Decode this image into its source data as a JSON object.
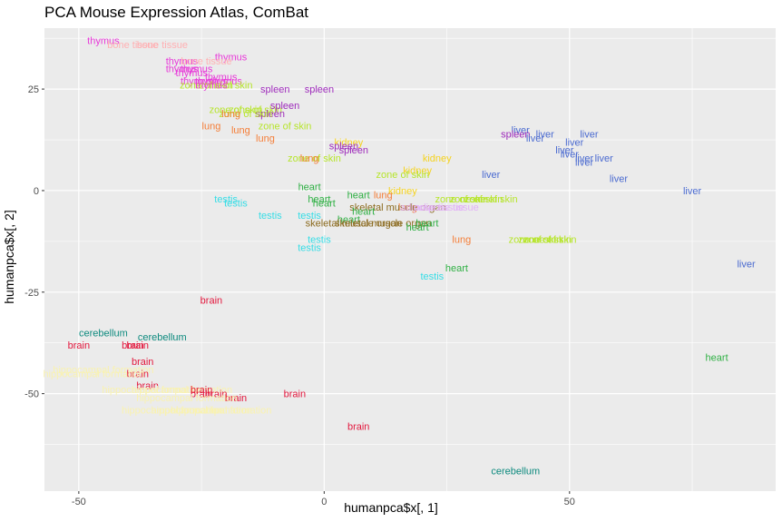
{
  "chart_data": {
    "type": "scatter",
    "title": "PCA Mouse Expression Atlas, ComBat",
    "xlabel": "humanpca$x[, 1]",
    "ylabel": "humanpca$x[, 2]",
    "xlim": [
      -57,
      92
    ],
    "ylim": [
      -74,
      40
    ],
    "x_ticks": [
      -50,
      0,
      50
    ],
    "y_ticks": [
      -50,
      -25,
      0,
      25
    ],
    "x_tick_labels": [
      "-50",
      "0",
      "50"
    ],
    "y_tick_labels": [
      "-50",
      "-25",
      "0",
      "25"
    ],
    "grid": true,
    "panel_background": "#ebebeb",
    "colors": {
      "thymus": "#e83ad9",
      "bone tissue": "#ffb0b3",
      "spleen": "#9e2bbb",
      "zone of skin": "#b6e52a",
      "lung": "#f47d37",
      "kidney": "#f5d320",
      "liver": "#4a6ad0",
      "heart": "#2fb044",
      "testis": "#36dde6",
      "skeletal muscle organ": "#8b6a1e",
      "adipose tissue": "#e2b2f6",
      "brain": "#e3173d",
      "cerebellum": "#0d8a7e",
      "hippocampal formation": "#f9f2b0"
    },
    "points": [
      {
        "label": "thymus",
        "x": -45,
        "y": 37
      },
      {
        "label": "bone tissue",
        "x": -33,
        "y": 36
      },
      {
        "label": "bone tissue",
        "x": -39,
        "y": 36
      },
      {
        "label": "thymus",
        "x": -19,
        "y": 33
      },
      {
        "label": "thymus",
        "x": -29,
        "y": 32
      },
      {
        "label": "bone tissue",
        "x": -24,
        "y": 32
      },
      {
        "label": "thymus",
        "x": -26,
        "y": 30
      },
      {
        "label": "thymus",
        "x": -29,
        "y": 30
      },
      {
        "label": "thymus",
        "x": -27,
        "y": 29
      },
      {
        "label": "thymus",
        "x": -21,
        "y": 28
      },
      {
        "label": "thymus",
        "x": -26,
        "y": 27
      },
      {
        "label": "thymus",
        "x": -23,
        "y": 27
      },
      {
        "label": "thymus",
        "x": -20,
        "y": 27
      },
      {
        "label": "zone of skin",
        "x": -24,
        "y": 26
      },
      {
        "label": "zone of skin",
        "x": -20,
        "y": 26
      },
      {
        "label": "thymus",
        "x": -23,
        "y": 26
      },
      {
        "label": "spleen",
        "x": -10,
        "y": 25
      },
      {
        "label": "spleen",
        "x": -1,
        "y": 25
      },
      {
        "label": "zone of skin",
        "x": -18,
        "y": 20
      },
      {
        "label": "zone of skin",
        "x": -14,
        "y": 20
      },
      {
        "label": "spleen",
        "x": -8,
        "y": 21
      },
      {
        "label": "spleen",
        "x": -11,
        "y": 19
      },
      {
        "label": "zone of skin",
        "x": -16,
        "y": 19
      },
      {
        "label": "lung",
        "x": -19,
        "y": 19
      },
      {
        "label": "lung",
        "x": -23,
        "y": 16
      },
      {
        "label": "lung",
        "x": -17,
        "y": 15
      },
      {
        "label": "zone of skin",
        "x": -8,
        "y": 16
      },
      {
        "label": "lung",
        "x": -12,
        "y": 13
      },
      {
        "label": "kidney",
        "x": 5,
        "y": 12
      },
      {
        "label": "spleen",
        "x": 4,
        "y": 11
      },
      {
        "label": "spleen",
        "x": 6,
        "y": 10
      },
      {
        "label": "zone of skin",
        "x": -2,
        "y": 8
      },
      {
        "label": "lung",
        "x": -3,
        "y": 8
      },
      {
        "label": "kidney",
        "x": 23,
        "y": 8
      },
      {
        "label": "liver",
        "x": 40,
        "y": 15
      },
      {
        "label": "liver",
        "x": 45,
        "y": 14
      },
      {
        "label": "spleen",
        "x": 39,
        "y": 14
      },
      {
        "label": "liver",
        "x": 43,
        "y": 13
      },
      {
        "label": "liver",
        "x": 54,
        "y": 14
      },
      {
        "label": "liver",
        "x": 51,
        "y": 12
      },
      {
        "label": "liver",
        "x": 49,
        "y": 10
      },
      {
        "label": "liver",
        "x": 50,
        "y": 9
      },
      {
        "label": "liver",
        "x": 53,
        "y": 8
      },
      {
        "label": "liver",
        "x": 53,
        "y": 7
      },
      {
        "label": "liver",
        "x": 57,
        "y": 8
      },
      {
        "label": "kidney",
        "x": 19,
        "y": 5
      },
      {
        "label": "zone of skin",
        "x": 16,
        "y": 4
      },
      {
        "label": "liver",
        "x": 34,
        "y": 4
      },
      {
        "label": "liver",
        "x": 60,
        "y": 3
      },
      {
        "label": "heart",
        "x": -3,
        "y": 1
      },
      {
        "label": "kidney",
        "x": 16,
        "y": 0
      },
      {
        "label": "liver",
        "x": 75,
        "y": 0
      },
      {
        "label": "testis",
        "x": -20,
        "y": -2
      },
      {
        "label": "testis",
        "x": -18,
        "y": -3
      },
      {
        "label": "heart",
        "x": -1,
        "y": -2
      },
      {
        "label": "heart",
        "x": 0,
        "y": -3
      },
      {
        "label": "heart",
        "x": 7,
        "y": -1
      },
      {
        "label": "lung",
        "x": 12,
        "y": -1
      },
      {
        "label": "zone of skin",
        "x": 28,
        "y": -2
      },
      {
        "label": "zone of skin",
        "x": 31,
        "y": -2
      },
      {
        "label": "zone of skin",
        "x": 34,
        "y": -2
      },
      {
        "label": "lung",
        "x": 17,
        "y": -4
      },
      {
        "label": "skeletal muscle organ",
        "x": 15,
        "y": -4
      },
      {
        "label": "adipose tissue",
        "x": 22,
        "y": -4
      },
      {
        "label": "adipose tissue",
        "x": 25,
        "y": -4
      },
      {
        "label": "heart",
        "x": 8,
        "y": -5
      },
      {
        "label": "testis",
        "x": -11,
        "y": -6
      },
      {
        "label": "testis",
        "x": -3,
        "y": -6
      },
      {
        "label": "heart",
        "x": 5,
        "y": -7
      },
      {
        "label": "skeletal muscle organ",
        "x": 6,
        "y": -8
      },
      {
        "label": "skeletal muscle organ",
        "x": 12,
        "y": -8
      },
      {
        "label": "heart",
        "x": 21,
        "y": -8
      },
      {
        "label": "heart",
        "x": 19,
        "y": -9
      },
      {
        "label": "testis",
        "x": -1,
        "y": -12
      },
      {
        "label": "testis",
        "x": -3,
        "y": -14
      },
      {
        "label": "lung",
        "x": 28,
        "y": -12
      },
      {
        "label": "zone of skin",
        "x": 43,
        "y": -12
      },
      {
        "label": "zone of skin",
        "x": 45,
        "y": -12
      },
      {
        "label": "zone of skin",
        "x": 46,
        "y": -12
      },
      {
        "label": "heart",
        "x": 27,
        "y": -19
      },
      {
        "label": "testis",
        "x": 22,
        "y": -21
      },
      {
        "label": "liver",
        "x": 86,
        "y": -18
      },
      {
        "label": "brain",
        "x": -23,
        "y": -27
      },
      {
        "label": "cerebellum",
        "x": -45,
        "y": -35
      },
      {
        "label": "cerebellum",
        "x": -33,
        "y": -36
      },
      {
        "label": "brain",
        "x": -39,
        "y": -38
      },
      {
        "label": "brain",
        "x": -38,
        "y": -38
      },
      {
        "label": "brain",
        "x": -50,
        "y": -38
      },
      {
        "label": "heart",
        "x": 80,
        "y": -41
      },
      {
        "label": "brain",
        "x": -37,
        "y": -42
      },
      {
        "label": "hippocampal formation",
        "x": -45,
        "y": -44
      },
      {
        "label": "brain",
        "x": -38,
        "y": -45
      },
      {
        "label": "hippocampal formation",
        "x": -47,
        "y": -45
      },
      {
        "label": "brain",
        "x": -36,
        "y": -48
      },
      {
        "label": "hippocampal formation",
        "x": -35,
        "y": -49
      },
      {
        "label": "hippocampal formation",
        "x": -29,
        "y": -49
      },
      {
        "label": "brain",
        "x": -25,
        "y": -49
      },
      {
        "label": "brain",
        "x": -25,
        "y": -50
      },
      {
        "label": "brain",
        "x": -22,
        "y": -50
      },
      {
        "label": "brain",
        "x": -6,
        "y": -50
      },
      {
        "label": "brain",
        "x": -18,
        "y": -51
      },
      {
        "label": "hippocampal formation",
        "x": -28,
        "y": -51
      },
      {
        "label": "hippocampal formation",
        "x": -31,
        "y": -54
      },
      {
        "label": "hippocampal formation",
        "x": -25,
        "y": -54
      },
      {
        "label": "hippocampal formation",
        "x": -21,
        "y": -54
      },
      {
        "label": "brain",
        "x": 7,
        "y": -58
      },
      {
        "label": "cerebellum",
        "x": 39,
        "y": -69
      }
    ]
  }
}
